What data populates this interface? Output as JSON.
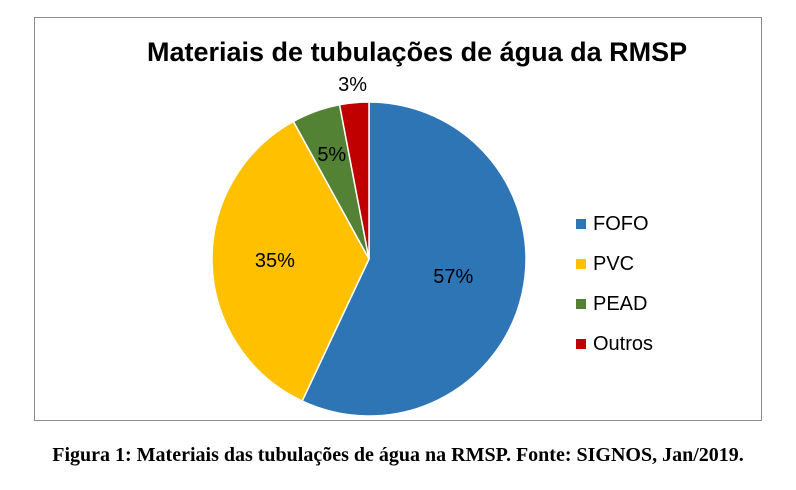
{
  "chart_data": {
    "type": "pie",
    "title": "Materiais de tubulações de água da RMSP",
    "categories": [
      "FOFO",
      "PVC",
      "PEAD",
      "Outros"
    ],
    "values": [
      57,
      35,
      5,
      3
    ],
    "data_labels": [
      "57%",
      "35%",
      "5%",
      "3%"
    ],
    "colors": [
      "#2E75B6",
      "#FFC000",
      "#548235",
      "#C00000"
    ],
    "legend_position": "right"
  },
  "caption": "Figura 1: Materiais das tubulações de água na RMSP. Fonte: SIGNOS, Jan/2019."
}
